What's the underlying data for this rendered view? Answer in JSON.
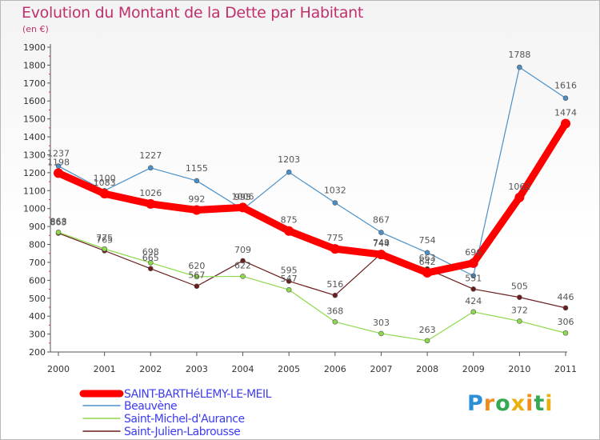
{
  "chart_data": {
    "type": "line",
    "title": "Evolution du Montant de la Dette par Habitant",
    "subtitle": "(en €)",
    "x": [
      "2000",
      "2001",
      "2002",
      "2003",
      "2004",
      "2005",
      "2006",
      "2007",
      "2008",
      "2009",
      "2010",
      "2011"
    ],
    "ylim": [
      200,
      1900
    ],
    "yticks": [
      200,
      300,
      400,
      500,
      600,
      700,
      800,
      900,
      1000,
      1100,
      1200,
      1300,
      1400,
      1500,
      1600,
      1700,
      1800,
      1900
    ],
    "grid": false,
    "legend_position": "bottom-left",
    "series": [
      {
        "name": "SAINT-BARTHéLEMY-LE-MEIL",
        "color": "#ff0000",
        "values": [
          1198,
          1083,
          1026,
          992,
          1006,
          875,
          775,
          744,
          642,
          696,
          1062,
          1474
        ],
        "labels": [
          "1198",
          "1083",
          "1026",
          "992",
          "1006",
          "875",
          "775",
          "744",
          "642",
          "696",
          "1062",
          "1474"
        ]
      },
      {
        "name": "Beauvène",
        "color": "#4a90c8",
        "values": [
          1237,
          1100,
          1227,
          1155,
          995,
          1203,
          1032,
          867,
          754,
          625,
          1788,
          1616
        ],
        "labels": [
          "1237",
          "1100",
          "1227",
          "1155",
          "995",
          "1203",
          "1032",
          "867",
          "754",
          "",
          "1788",
          "1616"
        ]
      },
      {
        "name": "Saint-Michel-d'Aurance",
        "color": "#8ed94a",
        "values": [
          868,
          775,
          698,
          620,
          622,
          547,
          368,
          303,
          263,
          424,
          372,
          306
        ],
        "labels": [
          "868",
          "775",
          "698",
          "620",
          "622",
          "547",
          "368",
          "303",
          "263",
          "424",
          "372",
          "306"
        ]
      },
      {
        "name": "Saint-Julien-Labrousse",
        "color": "#6b1c1c",
        "values": [
          863,
          765,
          665,
          567,
          709,
          595,
          516,
          749,
          663,
          551,
          505,
          446
        ],
        "labels": [
          "863",
          "765",
          "665",
          "567",
          "709",
          "595",
          "516",
          "749",
          "663",
          "551",
          "505",
          "446"
        ]
      }
    ]
  },
  "logo": {
    "text": "Proxiti"
  }
}
